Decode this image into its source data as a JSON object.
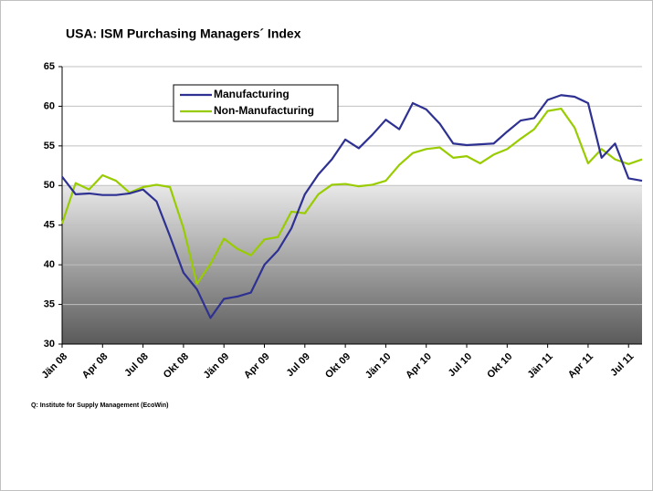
{
  "chart_data": {
    "type": "line",
    "title": "USA: ISM Purchasing Managers´ Index",
    "source": "Q: Institute for Supply Management (EcoWin)",
    "categories": [
      "Jän 08",
      null,
      null,
      "Apr 08",
      null,
      null,
      "Jul 08",
      null,
      null,
      "Okt 08",
      null,
      null,
      "Jän 09",
      null,
      null,
      "Apr 09",
      null,
      null,
      "Jul 09",
      null,
      null,
      "Okt 09",
      null,
      null,
      "Jän 10",
      null,
      null,
      "Apr 10",
      null,
      null,
      "Jul 10",
      null,
      null,
      "Okt 10",
      null,
      null,
      "Jän 11",
      null,
      null,
      "Apr 11",
      null,
      null,
      "Jul 11",
      null
    ],
    "series": [
      {
        "name": "Manufacturing",
        "color": "#2e3192",
        "values": [
          51.1,
          48.9,
          49.0,
          48.8,
          48.8,
          49.0,
          49.5,
          48.0,
          43.6,
          39.0,
          36.9,
          33.3,
          35.7,
          36.0,
          36.5,
          40.0,
          41.8,
          44.6,
          48.9,
          51.4,
          53.3,
          55.8,
          54.7,
          56.4,
          58.3,
          57.1,
          60.4,
          59.6,
          57.8,
          55.3,
          55.1,
          55.2,
          55.3,
          56.8,
          58.2,
          58.5,
          60.8,
          61.4,
          61.2,
          60.4,
          53.5,
          55.3,
          50.9,
          50.6
        ]
      },
      {
        "name": "Non-Manufacturing",
        "color": "#99cc00",
        "values": [
          45.2,
          50.3,
          49.5,
          51.3,
          50.6,
          49.1,
          49.8,
          50.1,
          49.8,
          44.6,
          37.6,
          40.1,
          43.3,
          42.0,
          41.2,
          43.2,
          43.5,
          46.7,
          46.5,
          48.9,
          50.1,
          50.2,
          49.9,
          50.1,
          50.6,
          52.6,
          54.1,
          54.6,
          54.8,
          53.5,
          53.7,
          52.8,
          53.9,
          54.6,
          55.9,
          57.1,
          59.4,
          59.7,
          57.3,
          52.8,
          54.6,
          53.3,
          52.7,
          53.3
        ]
      }
    ],
    "ylim": [
      30,
      65
    ],
    "yticks": [
      30,
      35,
      40,
      45,
      50,
      55,
      60,
      65
    ],
    "grid": true
  }
}
